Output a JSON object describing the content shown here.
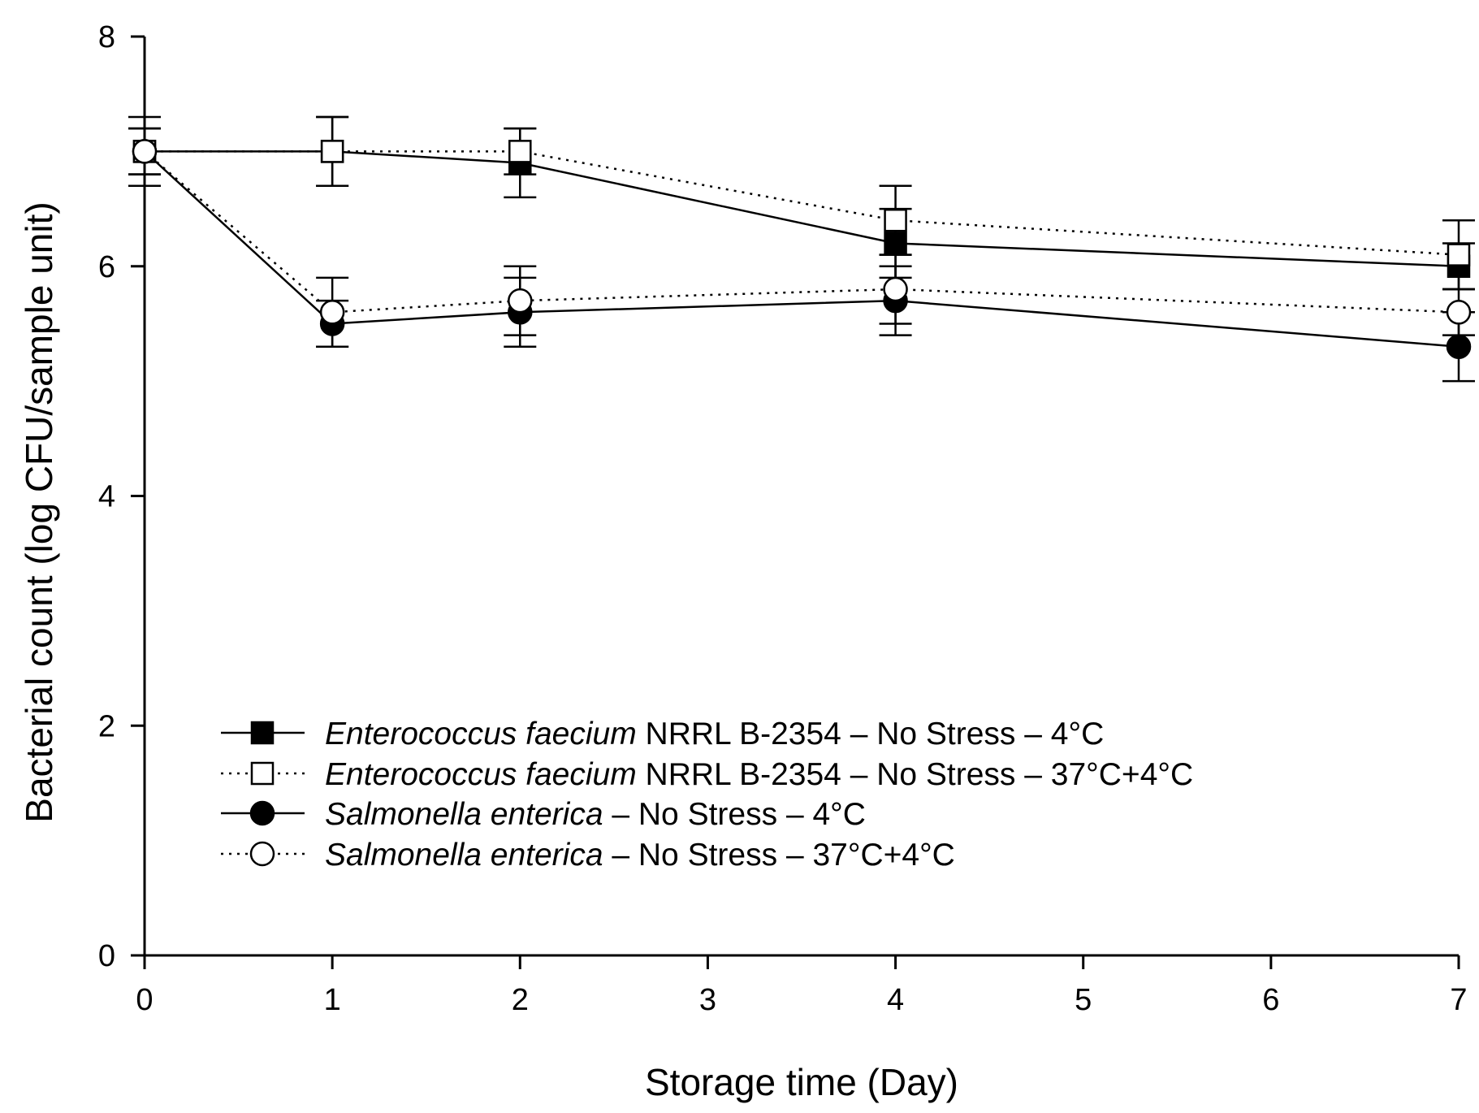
{
  "chart_data": {
    "type": "line",
    "title": "",
    "xlabel": "Storage time (Day)",
    "ylabel": "Bacterial count (log CFU/sample unit)",
    "xlim": [
      0,
      7
    ],
    "ylim": [
      0,
      8
    ],
    "x_ticks": [
      0,
      1,
      2,
      3,
      4,
      5,
      6,
      7
    ],
    "y_ticks": [
      0,
      2,
      4,
      6,
      8
    ],
    "grid": false,
    "legend_position": "lower-left",
    "x": [
      0,
      1,
      2,
      4,
      7
    ],
    "series": [
      {
        "name_italic": "Enterococcus faecium",
        "name_rest": " NRRL B-2354 – No Stress – 4°C",
        "marker": "square-filled",
        "line": "solid",
        "values": [
          7.0,
          7.0,
          6.9,
          6.2,
          6.0
        ],
        "errors": [
          0.3,
          0.3,
          0.3,
          0.3,
          0.2
        ]
      },
      {
        "name_italic": "Enterococcus faecium",
        "name_rest": " NRRL B-2354 – No Stress – 37°C+4°C",
        "marker": "square-open",
        "line": "dotted",
        "values": [
          7.0,
          7.0,
          7.0,
          6.4,
          6.1
        ],
        "errors": [
          0.2,
          0.3,
          0.2,
          0.3,
          0.3
        ]
      },
      {
        "name_italic": "Salmonella enterica",
        "name_rest": " – No Stress – 4°C",
        "marker": "circle-filled",
        "line": "solid",
        "values": [
          7.0,
          5.5,
          5.6,
          5.7,
          5.3
        ],
        "errors": [
          0.2,
          0.2,
          0.3,
          0.3,
          0.3
        ]
      },
      {
        "name_italic": "Salmonella enterica",
        "name_rest": " – No Stress – 37°C+4°C",
        "marker": "circle-open",
        "line": "dotted",
        "values": [
          7.0,
          5.6,
          5.7,
          5.8,
          5.6
        ],
        "errors": [
          0.2,
          0.3,
          0.3,
          0.3,
          0.2
        ]
      }
    ]
  }
}
